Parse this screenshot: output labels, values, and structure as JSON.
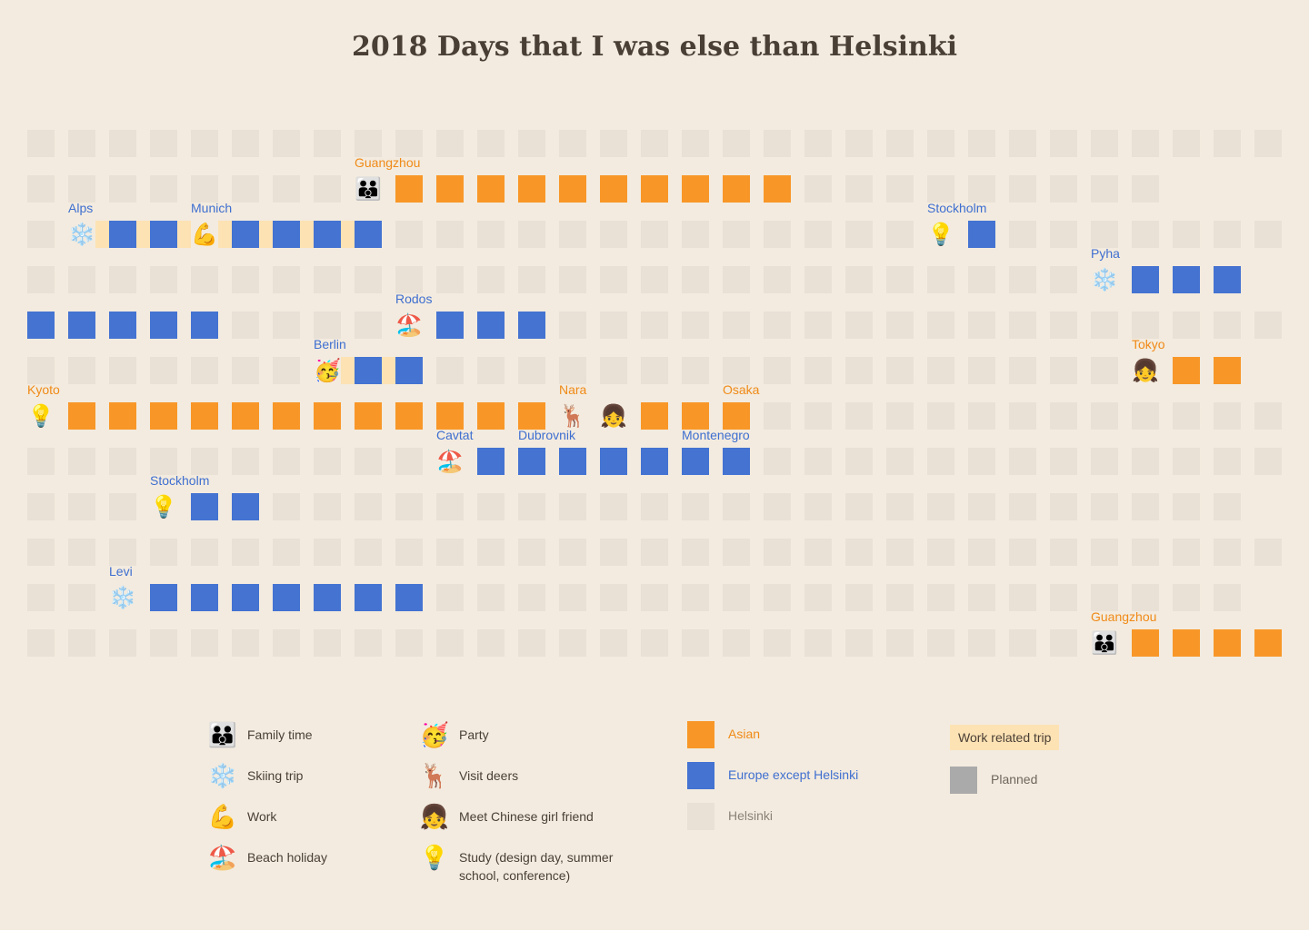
{
  "title": "2018 Days that I was else than Helsinki",
  "colors": {
    "asian": "#f89728",
    "europe": "#4473d2",
    "helsinki": "#e9e1d6",
    "work": "#fde2b4",
    "planned": "#aaaaaa",
    "background": "#f3ebdf"
  },
  "grid": {
    "columns": 31,
    "rows": 12,
    "row_lengths": [
      31,
      28,
      31,
      30,
      31,
      30,
      31,
      31,
      30,
      31,
      30,
      31
    ],
    "cells": [
      {
        "row": 1,
        "col": 9,
        "type": "A",
        "icon": "family-icon"
      },
      {
        "row": 1,
        "col": 10,
        "type": "A"
      },
      {
        "row": 1,
        "col": 11,
        "type": "A"
      },
      {
        "row": 1,
        "col": 12,
        "type": "A"
      },
      {
        "row": 1,
        "col": 13,
        "type": "A"
      },
      {
        "row": 1,
        "col": 14,
        "type": "A"
      },
      {
        "row": 1,
        "col": 15,
        "type": "A"
      },
      {
        "row": 1,
        "col": 16,
        "type": "A"
      },
      {
        "row": 1,
        "col": 17,
        "type": "A"
      },
      {
        "row": 1,
        "col": 18,
        "type": "A"
      },
      {
        "row": 1,
        "col": 19,
        "type": "A"
      },
      {
        "row": 2,
        "col": 1,
        "type": "H"
      },
      {
        "row": 2,
        "col": 2,
        "type": "E",
        "icon": "snowflake-icon"
      },
      {
        "row": 2,
        "col": 3,
        "type": "E"
      },
      {
        "row": 2,
        "col": 4,
        "type": "E"
      },
      {
        "row": 2,
        "col": 5,
        "type": "E",
        "icon": "flexed-biceps-icon"
      },
      {
        "row": 2,
        "col": 6,
        "type": "E"
      },
      {
        "row": 2,
        "col": 7,
        "type": "E"
      },
      {
        "row": 2,
        "col": 8,
        "type": "E"
      },
      {
        "row": 2,
        "col": 9,
        "type": "E"
      },
      {
        "row": 2,
        "col": 23,
        "type": "E",
        "icon": "light-bulb-icon"
      },
      {
        "row": 2,
        "col": 24,
        "type": "E"
      },
      {
        "row": 3,
        "col": 27,
        "type": "E",
        "icon": "snowflake-icon"
      },
      {
        "row": 3,
        "col": 28,
        "type": "E"
      },
      {
        "row": 3,
        "col": 29,
        "type": "E"
      },
      {
        "row": 3,
        "col": 30,
        "type": "E"
      },
      {
        "row": 4,
        "col": 1,
        "type": "E"
      },
      {
        "row": 4,
        "col": 2,
        "type": "E"
      },
      {
        "row": 4,
        "col": 3,
        "type": "E"
      },
      {
        "row": 4,
        "col": 4,
        "type": "E"
      },
      {
        "row": 4,
        "col": 5,
        "type": "E"
      },
      {
        "row": 4,
        "col": 10,
        "type": "E",
        "icon": "beach-umbrella-icon"
      },
      {
        "row": 4,
        "col": 11,
        "type": "E"
      },
      {
        "row": 4,
        "col": 12,
        "type": "E"
      },
      {
        "row": 4,
        "col": 13,
        "type": "E"
      },
      {
        "row": 5,
        "col": 8,
        "type": "E",
        "icon": "party-face-icon"
      },
      {
        "row": 5,
        "col": 9,
        "type": "E"
      },
      {
        "row": 5,
        "col": 10,
        "type": "E"
      },
      {
        "row": 5,
        "col": 28,
        "type": "A",
        "icon": "girl-icon"
      },
      {
        "row": 5,
        "col": 29,
        "type": "A"
      },
      {
        "row": 5,
        "col": 30,
        "type": "A"
      },
      {
        "row": 6,
        "col": 1,
        "type": "A",
        "icon": "light-bulb-icon"
      },
      {
        "row": 6,
        "col": 2,
        "type": "A"
      },
      {
        "row": 6,
        "col": 3,
        "type": "A"
      },
      {
        "row": 6,
        "col": 4,
        "type": "A"
      },
      {
        "row": 6,
        "col": 5,
        "type": "A"
      },
      {
        "row": 6,
        "col": 6,
        "type": "A"
      },
      {
        "row": 6,
        "col": 7,
        "type": "A"
      },
      {
        "row": 6,
        "col": 8,
        "type": "A"
      },
      {
        "row": 6,
        "col": 9,
        "type": "A"
      },
      {
        "row": 6,
        "col": 10,
        "type": "A"
      },
      {
        "row": 6,
        "col": 11,
        "type": "A"
      },
      {
        "row": 6,
        "col": 12,
        "type": "A"
      },
      {
        "row": 6,
        "col": 13,
        "type": "A"
      },
      {
        "row": 6,
        "col": 14,
        "type": "A",
        "icon": "deer-icon"
      },
      {
        "row": 6,
        "col": 15,
        "type": "A",
        "icon": "girl-icon"
      },
      {
        "row": 6,
        "col": 16,
        "type": "A"
      },
      {
        "row": 6,
        "col": 17,
        "type": "A"
      },
      {
        "row": 6,
        "col": 18,
        "type": "A"
      },
      {
        "row": 7,
        "col": 11,
        "type": "E",
        "icon": "beach-umbrella-icon"
      },
      {
        "row": 7,
        "col": 12,
        "type": "E"
      },
      {
        "row": 7,
        "col": 13,
        "type": "E"
      },
      {
        "row": 7,
        "col": 14,
        "type": "E"
      },
      {
        "row": 7,
        "col": 15,
        "type": "E"
      },
      {
        "row": 7,
        "col": 16,
        "type": "E"
      },
      {
        "row": 7,
        "col": 17,
        "type": "E"
      },
      {
        "row": 7,
        "col": 18,
        "type": "E"
      },
      {
        "row": 8,
        "col": 4,
        "type": "E",
        "icon": "light-bulb-icon"
      },
      {
        "row": 8,
        "col": 5,
        "type": "E"
      },
      {
        "row": 8,
        "col": 6,
        "type": "E"
      },
      {
        "row": 10,
        "col": 3,
        "type": "E",
        "icon": "snowflake-icon"
      },
      {
        "row": 10,
        "col": 4,
        "type": "E"
      },
      {
        "row": 10,
        "col": 5,
        "type": "E"
      },
      {
        "row": 10,
        "col": 6,
        "type": "E"
      },
      {
        "row": 10,
        "col": 7,
        "type": "E"
      },
      {
        "row": 10,
        "col": 8,
        "type": "E"
      },
      {
        "row": 10,
        "col": 9,
        "type": "E"
      },
      {
        "row": 10,
        "col": 10,
        "type": "E"
      },
      {
        "row": 11,
        "col": 27,
        "type": "A",
        "icon": "family-icon"
      },
      {
        "row": 11,
        "col": 28,
        "type": "A"
      },
      {
        "row": 11,
        "col": 29,
        "type": "A"
      },
      {
        "row": 11,
        "col": 30,
        "type": "A"
      },
      {
        "row": 11,
        "col": 31,
        "type": "A"
      }
    ],
    "work_trips": [
      {
        "row": 2,
        "from": 2,
        "to": 9
      },
      {
        "row": 5,
        "from": 8,
        "to": 10
      }
    ],
    "places": [
      {
        "text": "Guangzhou",
        "row": 1,
        "col": 9,
        "type": "A"
      },
      {
        "text": "Alps",
        "row": 2,
        "col": 2,
        "type": "E"
      },
      {
        "text": "Munich",
        "row": 2,
        "col": 5,
        "type": "E"
      },
      {
        "text": "Stockholm",
        "row": 2,
        "col": 23,
        "type": "E"
      },
      {
        "text": "Pyha",
        "row": 3,
        "col": 27,
        "type": "E"
      },
      {
        "text": "Rodos",
        "row": 4,
        "col": 10,
        "type": "E"
      },
      {
        "text": "Berlin",
        "row": 5,
        "col": 8,
        "type": "E"
      },
      {
        "text": "Tokyo",
        "row": 5,
        "col": 28,
        "type": "A"
      },
      {
        "text": "Kyoto",
        "row": 6,
        "col": 1,
        "type": "A"
      },
      {
        "text": "Nara",
        "row": 6,
        "col": 14,
        "type": "A"
      },
      {
        "text": "Osaka",
        "row": 6,
        "col": 18,
        "type": "A"
      },
      {
        "text": "Cavtat",
        "row": 7,
        "col": 11,
        "type": "E"
      },
      {
        "text": "Dubrovnik",
        "row": 7,
        "col": 13,
        "type": "E"
      },
      {
        "text": "Montenegro",
        "row": 7,
        "col": 17,
        "type": "E"
      },
      {
        "text": "Stockholm",
        "row": 8,
        "col": 4,
        "type": "E"
      },
      {
        "text": "Levi",
        "row": 10,
        "col": 3,
        "type": "E"
      },
      {
        "text": "Guangzhou",
        "row": 11,
        "col": 27,
        "type": "A"
      }
    ]
  },
  "icons": {
    "family-icon": "👪",
    "snowflake-icon": "❄️",
    "flexed-biceps-icon": "💪",
    "beach-umbrella-icon": "🏖️",
    "party-face-icon": "🥳",
    "deer-icon": "🦌",
    "girl-icon": "👧",
    "light-bulb-icon": "💡"
  },
  "legend": {
    "activities_col1": [
      {
        "label": "Family time",
        "icon": "family-icon"
      },
      {
        "label": "Skiing trip",
        "icon": "snowflake-icon"
      },
      {
        "label": "Work",
        "icon": "flexed-biceps-icon"
      },
      {
        "label": "Beach holiday",
        "icon": "beach-umbrella-icon"
      }
    ],
    "activities_col2": [
      {
        "label": "Party",
        "icon": "party-face-icon"
      },
      {
        "label": "Visit deers",
        "icon": "deer-icon"
      },
      {
        "label": "Meet Chinese girl friend",
        "icon": "girl-icon"
      },
      {
        "label": "Study (design day, summer school, conference)",
        "icon": "light-bulb-icon"
      }
    ],
    "regions": [
      {
        "label": "Asian",
        "color": "#f89728",
        "text_color": "#f08a17"
      },
      {
        "label": "Europe except Helsinki",
        "color": "#4473d2",
        "text_color": "#3f6fd0"
      },
      {
        "label": "Helsinki",
        "color": "#e9e1d6",
        "text_color": "#8a8178"
      }
    ],
    "work_related_trip": "Work related trip",
    "planned": "Planned"
  }
}
